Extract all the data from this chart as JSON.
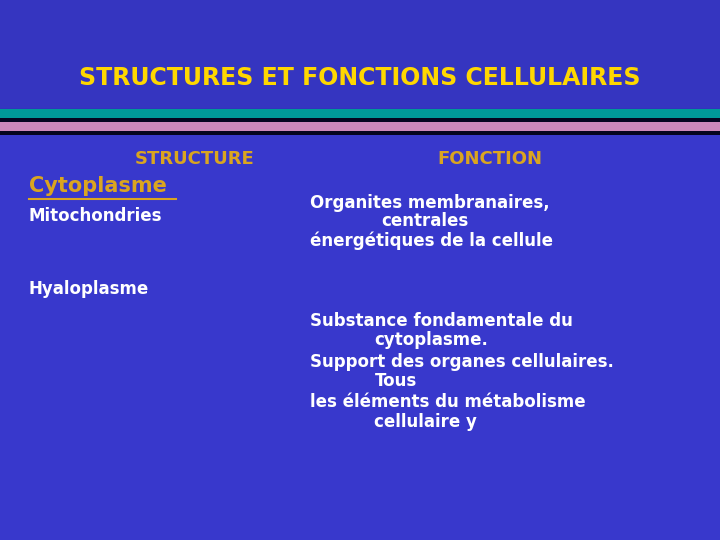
{
  "title": "STRUCTURES ET FONCTIONS CELLULAIRES",
  "title_color": "#FFD700",
  "bg_color": "#3333BB",
  "title_bg_color": "#3333BB",
  "content_bg_color": "#3535C8",
  "header_col1": "STRUCTURE",
  "header_col2": "FONCTION",
  "header_color": "#DAA520",
  "cytoplasme_label": "Cytoplasme",
  "cytoplasme_color": "#DAA520",
  "structure_color": "#FFFFFF",
  "fonction_color": "#FFFFFF",
  "fig_width": 7.2,
  "fig_height": 5.4,
  "title_fontsize": 17,
  "header_fontsize": 13,
  "body_fontsize": 12,
  "cytoplasme_fontsize": 15
}
